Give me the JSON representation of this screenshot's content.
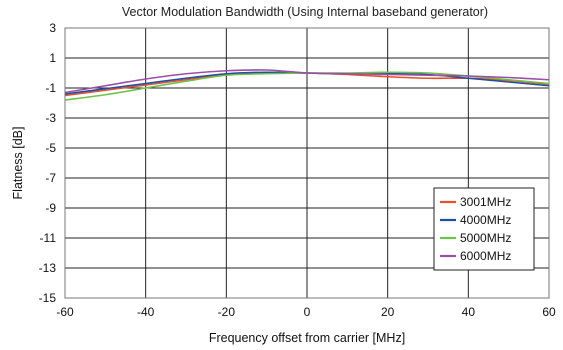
{
  "chart_data": {
    "type": "line",
    "title": "Vector Modulation Bandwidth (Using Internal baseband generator)",
    "xlabel": "Frequency offset from carrier [MHz]",
    "ylabel": "Flatness [dB]",
    "xlim": [
      -60,
      60
    ],
    "ylim": [
      -15,
      3
    ],
    "xticks": [
      -60,
      -40,
      -20,
      0,
      20,
      40,
      60
    ],
    "yticks": [
      3,
      1,
      -1,
      -3,
      -5,
      -7,
      -9,
      -11,
      -13,
      -15
    ],
    "grid": true,
    "legend_position": "bottom-right",
    "series": [
      {
        "name": "3001MHz",
        "color": "#e8502a",
        "x": [
          -60,
          -50,
          -40,
          -30,
          -20,
          -10,
          0,
          10,
          20,
          30,
          40,
          50,
          60
        ],
        "y": [
          -1.5,
          -1.15,
          -0.8,
          -0.45,
          -0.1,
          0.0,
          0.0,
          -0.1,
          -0.25,
          -0.35,
          -0.35,
          -0.5,
          -0.75
        ]
      },
      {
        "name": "4000MHz",
        "color": "#1f4fa0",
        "x": [
          -60,
          -50,
          -40,
          -30,
          -20,
          -10,
          0,
          10,
          20,
          30,
          40,
          50,
          60
        ],
        "y": [
          -1.4,
          -1.05,
          -0.7,
          -0.35,
          -0.05,
          0.05,
          0.0,
          -0.05,
          -0.05,
          -0.1,
          -0.35,
          -0.6,
          -0.85
        ]
      },
      {
        "name": "5000MHz",
        "color": "#6cc24a",
        "x": [
          -60,
          -50,
          -40,
          -30,
          -20,
          -10,
          0,
          10,
          20,
          30,
          40,
          50,
          60
        ],
        "y": [
          -1.8,
          -1.45,
          -1.0,
          -0.55,
          -0.15,
          -0.05,
          0.0,
          0.0,
          0.05,
          0.0,
          -0.2,
          -0.45,
          -0.7
        ]
      },
      {
        "name": "6000MHz",
        "color": "#9b4fa8",
        "x": [
          -60,
          -50,
          -40,
          -30,
          -20,
          -10,
          0,
          10,
          20,
          30,
          40,
          50,
          60
        ],
        "y": [
          -1.3,
          -0.85,
          -0.4,
          -0.05,
          0.15,
          0.2,
          0.0,
          -0.05,
          -0.1,
          -0.15,
          -0.2,
          -0.3,
          -0.45
        ]
      }
    ]
  }
}
